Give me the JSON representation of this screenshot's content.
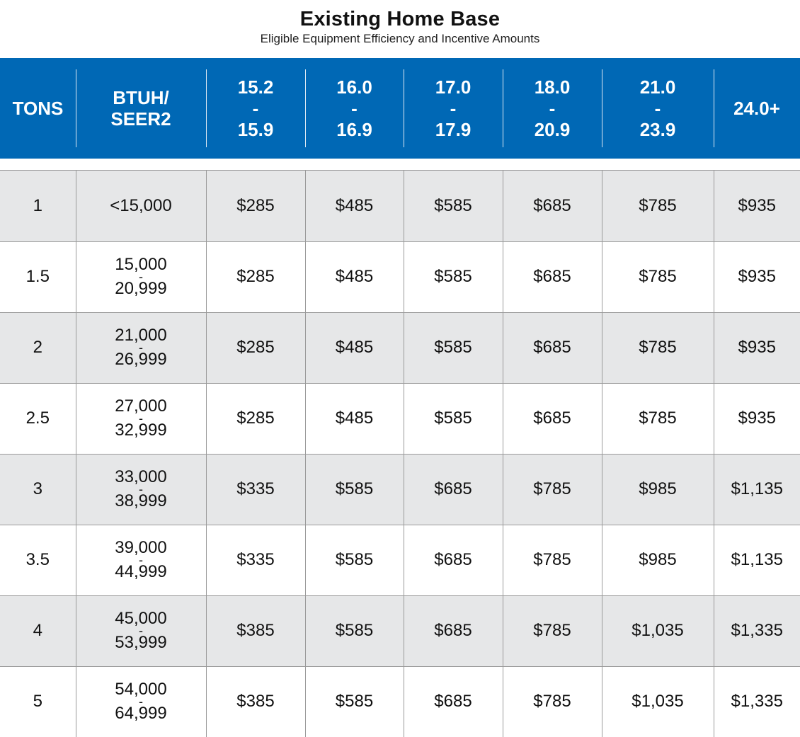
{
  "title": "Existing Home Base",
  "subtitle": "Eligible Equipment Efficiency and Incentive Amounts",
  "header": {
    "tons": "TONS",
    "btuh_line1": "BTUH/",
    "btuh_line2": "SEER2",
    "ranges": [
      {
        "low": "15.2",
        "dash": "-",
        "high": "15.9"
      },
      {
        "low": "16.0",
        "dash": "-",
        "high": "16.9"
      },
      {
        "low": "17.0",
        "dash": "-",
        "high": "17.9"
      },
      {
        "low": "18.0",
        "dash": "-",
        "high": "20.9"
      },
      {
        "low": "21.0",
        "dash": "-",
        "high": "23.9"
      }
    ],
    "last": "24.0+"
  },
  "rows": [
    {
      "tons": "1",
      "btuh_low": "<15,000",
      "dash": "",
      "btuh_high": "",
      "amounts": [
        "$285",
        "$485",
        "$585",
        "$685",
        "$785",
        "$935"
      ]
    },
    {
      "tons": "1.5",
      "btuh_low": "15,000",
      "dash": "-",
      "btuh_high": "20,999",
      "amounts": [
        "$285",
        "$485",
        "$585",
        "$685",
        "$785",
        "$935"
      ]
    },
    {
      "tons": "2",
      "btuh_low": "21,000",
      "dash": "-",
      "btuh_high": "26,999",
      "amounts": [
        "$285",
        "$485",
        "$585",
        "$685",
        "$785",
        "$935"
      ]
    },
    {
      "tons": "2.5",
      "btuh_low": "27,000",
      "dash": "-",
      "btuh_high": "32,999",
      "amounts": [
        "$285",
        "$485",
        "$585",
        "$685",
        "$785",
        "$935"
      ]
    },
    {
      "tons": "3",
      "btuh_low": "33,000",
      "dash": "-",
      "btuh_high": "38,999",
      "amounts": [
        "$335",
        "$585",
        "$685",
        "$785",
        "$985",
        "$1,135"
      ]
    },
    {
      "tons": "3.5",
      "btuh_low": "39,000",
      "dash": "-",
      "btuh_high": "44,999",
      "amounts": [
        "$335",
        "$585",
        "$685",
        "$785",
        "$985",
        "$1,135"
      ]
    },
    {
      "tons": "4",
      "btuh_low": "45,000",
      "dash": "-",
      "btuh_high": "53,999",
      "amounts": [
        "$385",
        "$585",
        "$685",
        "$785",
        "$1,035",
        "$1,335"
      ]
    },
    {
      "tons": "5",
      "btuh_low": "54,000",
      "dash": "-",
      "btuh_high": "64,999",
      "amounts": [
        "$385",
        "$585",
        "$685",
        "$785",
        "$1,035",
        "$1,335"
      ]
    }
  ]
}
